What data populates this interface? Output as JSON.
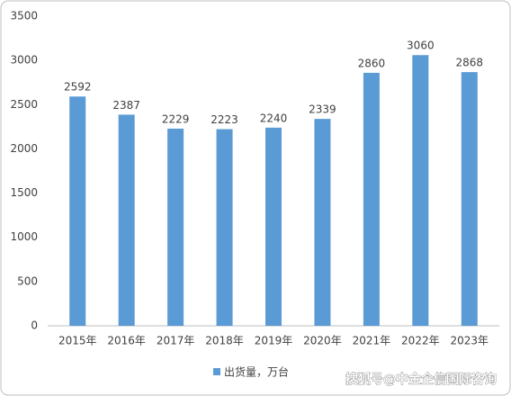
{
  "chart_data": {
    "type": "bar",
    "categories": [
      "2015年",
      "2016年",
      "2017年",
      "2018年",
      "2019年",
      "2020年",
      "2021年",
      "2022年",
      "2023年"
    ],
    "series": [
      {
        "name": "出货量，万台",
        "color": "#5b9bd5",
        "values": [
          2592,
          2387,
          2229,
          2223,
          2240,
          2339,
          2860,
          3060,
          2868
        ]
      }
    ],
    "ylim": [
      0,
      3500
    ],
    "yticks": [
      0,
      500,
      1000,
      1500,
      2000,
      2500,
      3000,
      3500
    ],
    "grid": false,
    "legend": "bottom",
    "watermark": "搜狐号@中金企信国际咨询"
  }
}
